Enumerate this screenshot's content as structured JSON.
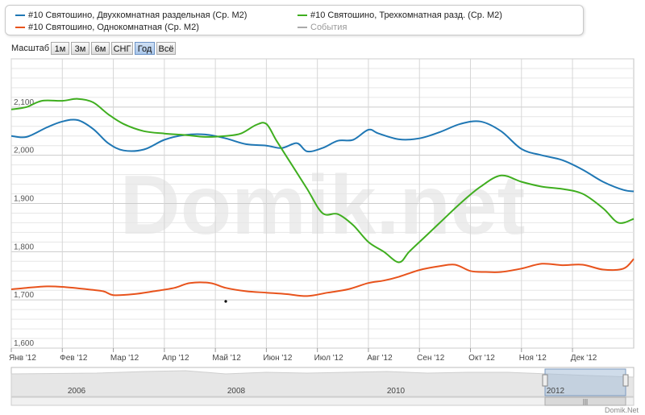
{
  "legend": {
    "items": [
      {
        "label": "#10 Святошино, Двухкомнатная раздельная (Ср. М2)",
        "color": "#1f77b4",
        "enabled": true
      },
      {
        "label": "#10 Святошино, Трехкомнатная разд. (Ср. М2)",
        "color": "#3fae1f",
        "enabled": true
      },
      {
        "label": "#10 Святошино, Однокомнатная (Ср. М2)",
        "color": "#e8531c",
        "enabled": true
      },
      {
        "label": "События",
        "color": "#aaaaaa",
        "enabled": false
      }
    ]
  },
  "zoom": {
    "label": "Масштаб",
    "buttons": [
      "1м",
      "3м",
      "6м",
      "СНГ",
      "Год",
      "Всё"
    ],
    "active": "Год"
  },
  "watermark": "Domik.net",
  "credit": "Domik.Net",
  "navigator": {
    "years": [
      "2006",
      "2008",
      "2010",
      "2012"
    ]
  },
  "chart_data": {
    "type": "line",
    "ylim": [
      1600,
      2200
    ],
    "yticks": [
      "1,600",
      "1,700",
      "1,800",
      "1,900",
      "2,000",
      "2,100"
    ],
    "x_range": [
      0,
      12.2
    ],
    "categories": [
      "Янв '12",
      "Фев '12",
      "Мар '12",
      "Апр '12",
      "Май '12",
      "Июн '12",
      "Июл '12",
      "Авг '12",
      "Сен '12",
      "Окт '12",
      "Ноя '12",
      "Дек '12"
    ],
    "grid": true,
    "series": [
      {
        "name": "#10 Святошино, Двухкомнатная раздельная (Ср. М2)",
        "color": "#1f77b4",
        "x": [
          0,
          0.3,
          0.7,
          1.0,
          1.3,
          1.6,
          1.9,
          2.2,
          2.6,
          3.0,
          3.4,
          3.8,
          4.2,
          4.6,
          5.0,
          5.3,
          5.6,
          5.8,
          6.1,
          6.4,
          6.7,
          7.0,
          7.2,
          7.6,
          8.0,
          8.4,
          8.8,
          9.2,
          9.6,
          10.0,
          10.4,
          10.8,
          11.2,
          11.6,
          12.0,
          12.2
        ],
        "y": [
          2040,
          2038,
          2058,
          2070,
          2073,
          2055,
          2025,
          2010,
          2012,
          2032,
          2042,
          2043,
          2035,
          2023,
          2020,
          2015,
          2025,
          2008,
          2015,
          2030,
          2032,
          2053,
          2045,
          2033,
          2035,
          2048,
          2065,
          2070,
          2050,
          2013,
          2000,
          1990,
          1970,
          1945,
          1928,
          1925
        ]
      },
      {
        "name": "#10 Святошино, Трехкомнатная разд. (Ср. М2)",
        "color": "#3fae1f",
        "x": [
          0,
          0.3,
          0.6,
          1.0,
          1.3,
          1.6,
          1.9,
          2.2,
          2.6,
          3.0,
          3.4,
          3.8,
          4.2,
          4.5,
          4.8,
          5.0,
          5.2,
          5.5,
          5.8,
          6.1,
          6.4,
          6.7,
          7.0,
          7.3,
          7.6,
          7.8,
          8.1,
          8.4,
          8.8,
          9.2,
          9.6,
          10.0,
          10.4,
          10.8,
          11.2,
          11.6,
          11.9,
          12.2
        ],
        "y": [
          2095,
          2100,
          2113,
          2113,
          2117,
          2110,
          2085,
          2065,
          2050,
          2045,
          2042,
          2038,
          2040,
          2045,
          2063,
          2065,
          2030,
          1980,
          1930,
          1880,
          1878,
          1855,
          1820,
          1800,
          1778,
          1800,
          1830,
          1860,
          1900,
          1935,
          1958,
          1945,
          1935,
          1930,
          1920,
          1890,
          1860,
          1868
        ]
      },
      {
        "name": "#10 Святошино, Однокомнатная (Ср. М2)",
        "color": "#e8531c",
        "x": [
          0,
          0.3,
          0.7,
          1.0,
          1.4,
          1.8,
          2.0,
          2.4,
          2.8,
          3.2,
          3.5,
          3.9,
          4.2,
          4.6,
          5.0,
          5.4,
          5.8,
          6.2,
          6.6,
          7.0,
          7.3,
          7.6,
          8.0,
          8.4,
          8.7,
          9.0,
          9.3,
          9.6,
          10.0,
          10.4,
          10.8,
          11.2,
          11.6,
          12.0,
          12.2
        ],
        "y": [
          1722,
          1725,
          1728,
          1727,
          1723,
          1718,
          1710,
          1712,
          1718,
          1725,
          1735,
          1735,
          1725,
          1718,
          1715,
          1712,
          1708,
          1715,
          1722,
          1735,
          1740,
          1748,
          1762,
          1770,
          1773,
          1760,
          1758,
          1758,
          1765,
          1775,
          1772,
          1773,
          1763,
          1765,
          1785
        ]
      }
    ]
  }
}
